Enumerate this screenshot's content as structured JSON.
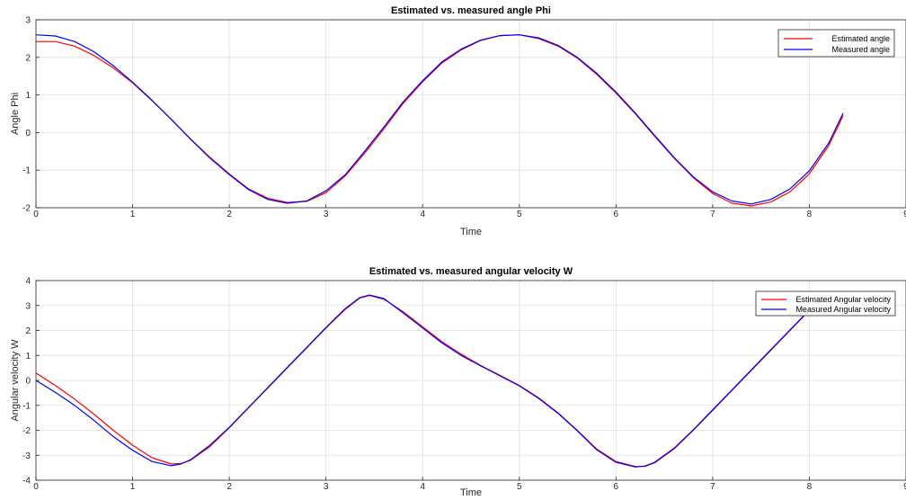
{
  "chart_data": [
    {
      "type": "line",
      "title": "Estimated vs. measured angle Phi",
      "xlabel": "Time",
      "ylabel": "Angle Phi",
      "xlim": [
        0,
        9
      ],
      "ylim": [
        -2,
        3
      ],
      "xticks": [
        0,
        1,
        2,
        3,
        4,
        5,
        6,
        7,
        8,
        9
      ],
      "yticks": [
        -2,
        -1,
        0,
        1,
        2,
        3
      ],
      "grid": true,
      "legend": "top-right",
      "series": [
        {
          "name": "Estimated angle",
          "color": "#ff0000",
          "x": [
            0,
            0.2,
            0.4,
            0.6,
            0.8,
            1.0,
            1.2,
            1.4,
            1.6,
            1.8,
            2.0,
            2.2,
            2.4,
            2.6,
            2.8,
            3.0,
            3.2,
            3.4,
            3.6,
            3.8,
            4.0,
            4.2,
            4.4,
            4.6,
            4.8,
            5.0,
            5.2,
            5.4,
            5.6,
            5.8,
            6.0,
            6.2,
            6.4,
            6.6,
            6.8,
            7.0,
            7.2,
            7.4,
            7.6,
            7.8,
            8.0,
            8.2,
            8.35
          ],
          "y": [
            2.42,
            2.42,
            2.3,
            2.05,
            1.72,
            1.32,
            0.85,
            0.35,
            -0.17,
            -0.66,
            -1.1,
            -1.5,
            -1.75,
            -1.86,
            -1.83,
            -1.6,
            -1.15,
            -0.55,
            0.1,
            0.78,
            1.35,
            1.85,
            2.2,
            2.45,
            2.58,
            2.6,
            2.5,
            2.3,
            1.98,
            1.55,
            1.05,
            0.5,
            -0.1,
            -0.68,
            -1.2,
            -1.62,
            -1.88,
            -1.95,
            -1.85,
            -1.58,
            -1.1,
            -0.35,
            0.45
          ]
        },
        {
          "name": "Measured angle",
          "color": "#0000ff",
          "x": [
            0,
            0.2,
            0.4,
            0.6,
            0.8,
            1.0,
            1.2,
            1.4,
            1.6,
            1.8,
            2.0,
            2.2,
            2.4,
            2.6,
            2.8,
            3.0,
            3.2,
            3.4,
            3.6,
            3.8,
            4.0,
            4.2,
            4.4,
            4.6,
            4.8,
            5.0,
            5.2,
            5.4,
            5.6,
            5.8,
            6.0,
            6.2,
            6.4,
            6.6,
            6.8,
            7.0,
            7.2,
            7.4,
            7.6,
            7.8,
            8.0,
            8.2,
            8.35
          ],
          "y": [
            2.6,
            2.57,
            2.42,
            2.15,
            1.78,
            1.34,
            0.86,
            0.35,
            -0.18,
            -0.68,
            -1.12,
            -1.52,
            -1.78,
            -1.88,
            -1.82,
            -1.55,
            -1.12,
            -0.5,
            0.15,
            0.82,
            1.38,
            1.88,
            2.22,
            2.46,
            2.58,
            2.6,
            2.52,
            2.32,
            2.0,
            1.58,
            1.08,
            0.52,
            -0.08,
            -0.66,
            -1.18,
            -1.58,
            -1.82,
            -1.9,
            -1.78,
            -1.5,
            -1.02,
            -0.28,
            0.52
          ]
        }
      ]
    },
    {
      "type": "line",
      "title": "Estimated vs. measured angular velocity W",
      "xlabel": "Time",
      "ylabel": "Angular velocity W",
      "xlim": [
        0,
        9
      ],
      "ylim": [
        -4,
        4
      ],
      "xticks": [
        0,
        1,
        2,
        3,
        4,
        5,
        6,
        7,
        8,
        9
      ],
      "yticks": [
        -4,
        -3,
        -2,
        -1,
        0,
        1,
        2,
        3,
        4
      ],
      "grid": true,
      "legend": "top-right",
      "series": [
        {
          "name": "Estimated Angular velocity",
          "color": "#ff0000",
          "x": [
            0,
            0.2,
            0.4,
            0.6,
            0.8,
            1.0,
            1.2,
            1.4,
            1.5,
            1.6,
            1.8,
            2.0,
            2.2,
            2.4,
            2.6,
            2.8,
            3.0,
            3.2,
            3.35,
            3.45,
            3.6,
            3.8,
            4.0,
            4.2,
            4.4,
            4.6,
            4.8,
            5.0,
            5.2,
            5.4,
            5.6,
            5.8,
            6.0,
            6.2,
            6.3,
            6.4,
            6.6,
            6.8,
            7.0,
            7.2,
            7.4,
            7.6,
            7.8,
            8.0,
            8.1
          ],
          "y": [
            0.3,
            -0.2,
            -0.75,
            -1.35,
            -2.0,
            -2.6,
            -3.1,
            -3.35,
            -3.33,
            -3.2,
            -2.65,
            -1.9,
            -1.1,
            -0.3,
            0.5,
            1.3,
            2.1,
            2.85,
            3.3,
            3.4,
            3.25,
            2.75,
            2.15,
            1.55,
            1.05,
            0.6,
            0.2,
            -0.2,
            -0.7,
            -1.3,
            -2.0,
            -2.75,
            -3.25,
            -3.45,
            -3.45,
            -3.3,
            -2.75,
            -2.0,
            -1.2,
            -0.4,
            0.4,
            1.2,
            2.0,
            2.8,
            3.1
          ]
        },
        {
          "name": "Measured Angular velocity",
          "color": "#0000ff",
          "x": [
            0,
            0.2,
            0.4,
            0.6,
            0.8,
            1.0,
            1.2,
            1.4,
            1.5,
            1.6,
            1.8,
            2.0,
            2.2,
            2.4,
            2.6,
            2.8,
            3.0,
            3.2,
            3.35,
            3.45,
            3.6,
            3.8,
            4.0,
            4.2,
            4.4,
            4.6,
            4.8,
            5.0,
            5.2,
            5.4,
            5.6,
            5.8,
            6.0,
            6.2,
            6.3,
            6.4,
            6.6,
            6.8,
            7.0,
            7.2,
            7.4,
            7.6,
            7.8,
            8.0,
            8.1
          ],
          "y": [
            0.0,
            -0.48,
            -1.0,
            -1.6,
            -2.25,
            -2.8,
            -3.25,
            -3.42,
            -3.35,
            -3.18,
            -2.6,
            -1.88,
            -1.08,
            -0.28,
            0.52,
            1.32,
            2.12,
            2.88,
            3.32,
            3.42,
            3.28,
            2.7,
            2.1,
            1.5,
            1.0,
            0.58,
            0.18,
            -0.22,
            -0.72,
            -1.32,
            -2.02,
            -2.78,
            -3.28,
            -3.47,
            -3.43,
            -3.28,
            -2.72,
            -1.98,
            -1.18,
            -0.38,
            0.42,
            1.22,
            2.02,
            2.82,
            3.12
          ]
        }
      ]
    }
  ]
}
